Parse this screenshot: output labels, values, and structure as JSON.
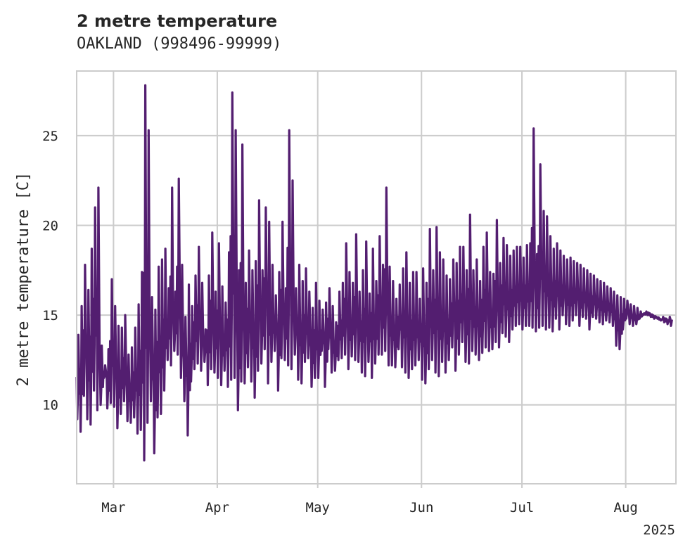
{
  "chart_data": {
    "type": "line",
    "title": "2 metre temperature",
    "subtitle": "OAKLAND (998496-99999)",
    "ylabel": "2 metre temperature [C]",
    "xlabel": "",
    "year_label": "2025",
    "xlim": [
      "2025-02-18",
      "2025-08-16"
    ],
    "ylim": [
      5.6,
      28.6
    ],
    "x_ticks": [
      {
        "date": "2025-03-01",
        "label": "Mar"
      },
      {
        "date": "2025-04-01",
        "label": "Apr"
      },
      {
        "date": "2025-05-01",
        "label": "May"
      },
      {
        "date": "2025-06-01",
        "label": "Jun"
      },
      {
        "date": "2025-07-01",
        "label": "Jul"
      },
      {
        "date": "2025-08-01",
        "label": "Aug"
      }
    ],
    "y_ticks": [
      10,
      15,
      20,
      25
    ],
    "grid": true,
    "colors": {
      "line": "#531e70",
      "grid": "#cccccc",
      "frame": "#cccccc",
      "text": "#262626"
    },
    "series": [
      {
        "x": [
          "2025-02-18",
          "2025-02-19",
          "2025-02-20",
          "2025-02-21",
          "2025-02-22",
          "2025-02-23",
          "2025-02-24",
          "2025-02-25",
          "2025-02-26",
          "2025-02-27",
          "2025-02-28",
          "2025-03-01",
          "2025-03-02",
          "2025-03-03",
          "2025-03-04",
          "2025-03-05",
          "2025-03-06",
          "2025-03-07",
          "2025-03-08",
          "2025-03-09",
          "2025-03-10",
          "2025-03-11",
          "2025-03-12",
          "2025-03-13",
          "2025-03-14",
          "2025-03-15",
          "2025-03-16",
          "2025-03-17",
          "2025-03-18",
          "2025-03-19",
          "2025-03-20",
          "2025-03-21",
          "2025-03-22",
          "2025-03-23",
          "2025-03-24",
          "2025-03-25",
          "2025-03-26",
          "2025-03-27",
          "2025-03-28",
          "2025-03-29",
          "2025-03-30",
          "2025-03-31",
          "2025-04-01",
          "2025-04-02",
          "2025-04-03",
          "2025-04-04",
          "2025-04-05",
          "2025-04-06",
          "2025-04-07",
          "2025-04-08",
          "2025-04-09",
          "2025-04-10",
          "2025-04-11",
          "2025-04-12",
          "2025-04-13",
          "2025-04-14",
          "2025-04-15",
          "2025-04-16",
          "2025-04-17",
          "2025-04-18",
          "2025-04-19",
          "2025-04-20",
          "2025-04-21",
          "2025-04-22",
          "2025-04-23",
          "2025-04-24",
          "2025-04-25",
          "2025-04-26",
          "2025-04-27",
          "2025-04-28",
          "2025-04-29",
          "2025-04-30",
          "2025-05-01",
          "2025-05-02",
          "2025-05-03",
          "2025-05-04",
          "2025-05-05",
          "2025-05-06",
          "2025-05-07",
          "2025-05-08",
          "2025-05-09",
          "2025-05-10",
          "2025-05-11",
          "2025-05-12",
          "2025-05-13",
          "2025-05-14",
          "2025-05-15",
          "2025-05-16",
          "2025-05-17",
          "2025-05-18",
          "2025-05-19",
          "2025-05-20",
          "2025-05-21",
          "2025-05-22",
          "2025-05-23",
          "2025-05-24",
          "2025-05-25",
          "2025-05-26",
          "2025-05-27",
          "2025-05-28",
          "2025-05-29",
          "2025-05-30",
          "2025-05-31",
          "2025-06-01",
          "2025-06-02",
          "2025-06-03",
          "2025-06-04",
          "2025-06-05",
          "2025-06-06",
          "2025-06-07",
          "2025-06-08",
          "2025-06-09",
          "2025-06-10",
          "2025-06-11",
          "2025-06-12",
          "2025-06-13",
          "2025-06-14",
          "2025-06-15",
          "2025-06-16",
          "2025-06-17",
          "2025-06-18",
          "2025-06-19",
          "2025-06-20",
          "2025-06-21",
          "2025-06-22",
          "2025-06-23",
          "2025-06-24",
          "2025-06-25",
          "2025-06-26",
          "2025-06-27",
          "2025-06-28",
          "2025-06-29",
          "2025-06-30",
          "2025-07-01",
          "2025-07-02",
          "2025-07-03",
          "2025-07-04",
          "2025-07-05",
          "2025-07-06",
          "2025-07-07",
          "2025-07-08",
          "2025-07-09",
          "2025-07-10",
          "2025-07-11",
          "2025-07-12",
          "2025-07-13",
          "2025-07-14",
          "2025-07-15",
          "2025-07-16",
          "2025-07-17",
          "2025-07-18",
          "2025-07-19",
          "2025-07-20",
          "2025-07-21",
          "2025-07-22",
          "2025-07-23",
          "2025-07-24",
          "2025-07-25",
          "2025-07-26",
          "2025-07-27",
          "2025-07-28",
          "2025-07-29",
          "2025-07-30",
          "2025-07-31",
          "2025-08-01",
          "2025-08-02",
          "2025-08-03",
          "2025-08-04",
          "2025-08-05",
          "2025-08-06",
          "2025-08-07",
          "2025-08-08",
          "2025-08-09",
          "2025-08-10",
          "2025-08-11",
          "2025-08-12",
          "2025-08-13",
          "2025-08-14",
          "2025-08-15",
          "2025-08-16"
        ],
        "min": [
          9.2,
          8.5,
          10.5,
          9.2,
          8.9,
          10.8,
          9.7,
          10.0,
          11.5,
          9.8,
          10.1,
          9.9,
          8.7,
          9.5,
          10.2,
          9.1,
          9.0,
          9.3,
          8.4,
          8.6,
          6.9,
          9.0,
          10.2,
          7.3,
          9.3,
          9.5,
          10.8,
          12.5,
          12.2,
          13.0,
          12.8,
          11.5,
          10.2,
          8.3,
          11.3,
          12.0,
          12.3,
          11.9,
          12.4,
          11.1,
          12.0,
          11.8,
          11.5,
          11.1,
          11.9,
          11.0,
          11.4,
          11.5,
          9.7,
          11.3,
          11.2,
          12.1,
          11.3,
          10.4,
          11.9,
          12.3,
          13.1,
          11.2,
          12.4,
          13.0,
          10.8,
          12.6,
          12.5,
          12.2,
          12.0,
          12.8,
          11.4,
          11.2,
          12.4,
          12.6,
          11.0,
          11.5,
          11.5,
          13.0,
          11.0,
          13.1,
          11.8,
          11.9,
          12.5,
          12.6,
          12.8,
          12.0,
          12.7,
          12.5,
          12.4,
          11.8,
          11.6,
          12.4,
          11.5,
          12.3,
          12.8,
          12.8,
          13.0,
          12.2,
          12.2,
          12.1,
          13.1,
          12.1,
          11.8,
          11.5,
          12.0,
          12.2,
          12.5,
          11.4,
          11.2,
          12.0,
          12.5,
          11.8,
          11.6,
          12.4,
          11.8,
          12.5,
          13.2,
          11.9,
          12.8,
          13.5,
          12.4,
          12.3,
          13.0,
          12.8,
          12.5,
          12.9,
          13.2,
          13.0,
          13.1,
          13.5,
          13.2,
          14.0,
          13.8,
          13.5,
          14.2,
          14.4,
          14.5,
          14.2,
          14.4,
          14.4,
          14.3,
          14.1,
          14.3,
          14.4,
          14.2,
          14.3,
          14.1,
          14.8,
          14.2,
          15.0,
          14.5,
          14.4,
          14.7,
          15.0,
          14.4,
          14.9,
          14.8,
          14.2,
          14.9,
          14.8,
          14.6,
          14.5,
          14.7,
          14.6,
          14.4,
          13.3,
          13.1,
          14.2,
          14.8,
          14.5,
          14.4,
          14.5,
          14.8,
          15.0,
          15.2,
          15.1,
          15.0,
          14.9,
          14.8,
          14.9,
          14.8,
          14.9
        ],
        "max": [
          13.9,
          15.5,
          17.8,
          16.4,
          18.7,
          21.0,
          22.1,
          13.3,
          12.2,
          13.1,
          17.0,
          15.5,
          14.4,
          14.3,
          15.0,
          12.8,
          13.2,
          14.3,
          15.6,
          17.4,
          27.8,
          25.3,
          16.0,
          15.3,
          17.7,
          18.1,
          18.7,
          16.5,
          22.1,
          16.3,
          22.6,
          17.8,
          14.9,
          16.7,
          15.5,
          17.2,
          18.8,
          16.8,
          14.2,
          17.2,
          19.6,
          16.3,
          19.0,
          16.6,
          15.7,
          18.5,
          27.4,
          25.3,
          17.5,
          24.5,
          16.8,
          18.6,
          17.5,
          18.0,
          21.4,
          17.5,
          21.0,
          20.2,
          17.8,
          16.1,
          17.4,
          20.2,
          16.5,
          25.3,
          22.5,
          16.5,
          17.8,
          16.9,
          17.6,
          16.3,
          15.4,
          16.8,
          15.8,
          15.3,
          15.7,
          16.5,
          15.5,
          14.6,
          16.3,
          16.8,
          19.0,
          17.4,
          16.8,
          19.5,
          16.3,
          17.5,
          19.1,
          16.2,
          18.7,
          16.9,
          19.4,
          17.8,
          22.1,
          17.7,
          16.9,
          15.9,
          16.7,
          17.6,
          18.5,
          16.8,
          17.4,
          17.4,
          15.9,
          17.6,
          16.8,
          19.8,
          17.5,
          19.9,
          18.5,
          18.1,
          17.2,
          17.0,
          18.1,
          17.9,
          18.8,
          18.8,
          17.5,
          20.6,
          17.5,
          18.1,
          16.9,
          18.8,
          19.6,
          17.4,
          17.3,
          20.3,
          17.9,
          19.3,
          18.9,
          18.3,
          18.6,
          18.8,
          18.8,
          18.2,
          18.9,
          19.0,
          25.4,
          18.4,
          23.4,
          20.8,
          20.5,
          19.4,
          18.7,
          19.0,
          18.6,
          18.3,
          18.1,
          18.2,
          18.0,
          17.9,
          17.8,
          17.6,
          17.5,
          17.3,
          17.2,
          17.0,
          16.9,
          16.8,
          16.6,
          16.5,
          16.3,
          16.1,
          16.0,
          15.9,
          15.8,
          15.6,
          15.5,
          15.4,
          15.2,
          15.1,
          15.0,
          14.9,
          14.8,
          14.8,
          14.7,
          14.6,
          14.5,
          14.4,
          14.3,
          14.2
        ]
      }
    ]
  }
}
